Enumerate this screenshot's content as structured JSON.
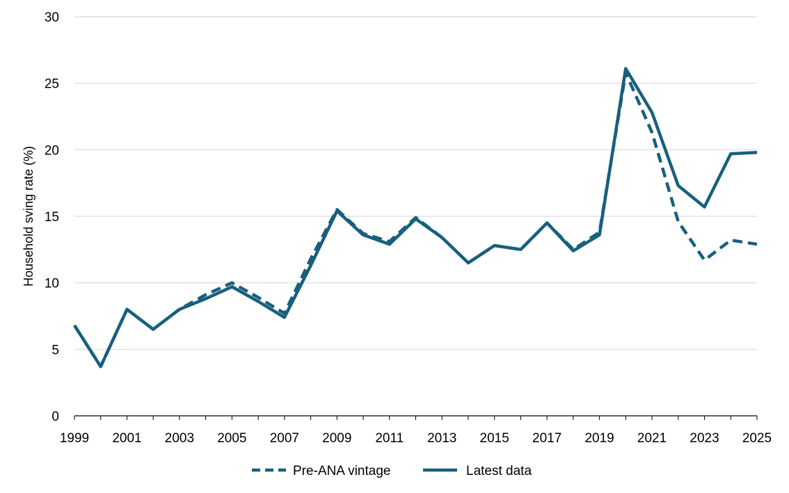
{
  "chart_data": {
    "type": "line",
    "title": "",
    "xlabel": "",
    "ylabel": "Household sving rate (%)",
    "xlim": [
      1999,
      2025
    ],
    "ylim": [
      0,
      30
    ],
    "y_ticks": [
      0,
      5,
      10,
      15,
      20,
      25,
      30
    ],
    "x_ticks": [
      1999,
      2001,
      2003,
      2005,
      2007,
      2009,
      2011,
      2013,
      2015,
      2017,
      2019,
      2021,
      2023,
      2025
    ],
    "grid": "horizontal",
    "legend_position": "bottom-center",
    "x": [
      1999,
      2000,
      2001,
      2002,
      2003,
      2004,
      2005,
      2006,
      2007,
      2008,
      2009,
      2010,
      2011,
      2012,
      2013,
      2014,
      2015,
      2016,
      2017,
      2018,
      2019,
      2020,
      2021,
      2022,
      2023,
      2024,
      2025
    ],
    "series": [
      {
        "name": "Pre-ANA vintage",
        "style": "dashed",
        "color": "#17607d",
        "values": [
          6.8,
          3.7,
          8.0,
          6.5,
          8.0,
          9.1,
          10.0,
          8.9,
          7.7,
          11.8,
          15.5,
          13.7,
          13.1,
          14.9,
          13.4,
          11.5,
          12.8,
          12.5,
          14.5,
          12.5,
          13.8,
          25.8,
          21.3,
          14.6,
          11.7,
          13.2,
          12.9
        ]
      },
      {
        "name": "Latest data",
        "style": "solid",
        "color": "#17607d",
        "values": [
          6.8,
          3.7,
          8.0,
          6.5,
          8.0,
          8.8,
          9.7,
          8.6,
          7.4,
          11.3,
          15.4,
          13.6,
          12.9,
          14.8,
          13.4,
          11.5,
          12.8,
          12.5,
          14.5,
          12.4,
          13.6,
          26.1,
          22.8,
          17.3,
          15.7,
          19.7,
          19.8
        ]
      }
    ]
  }
}
